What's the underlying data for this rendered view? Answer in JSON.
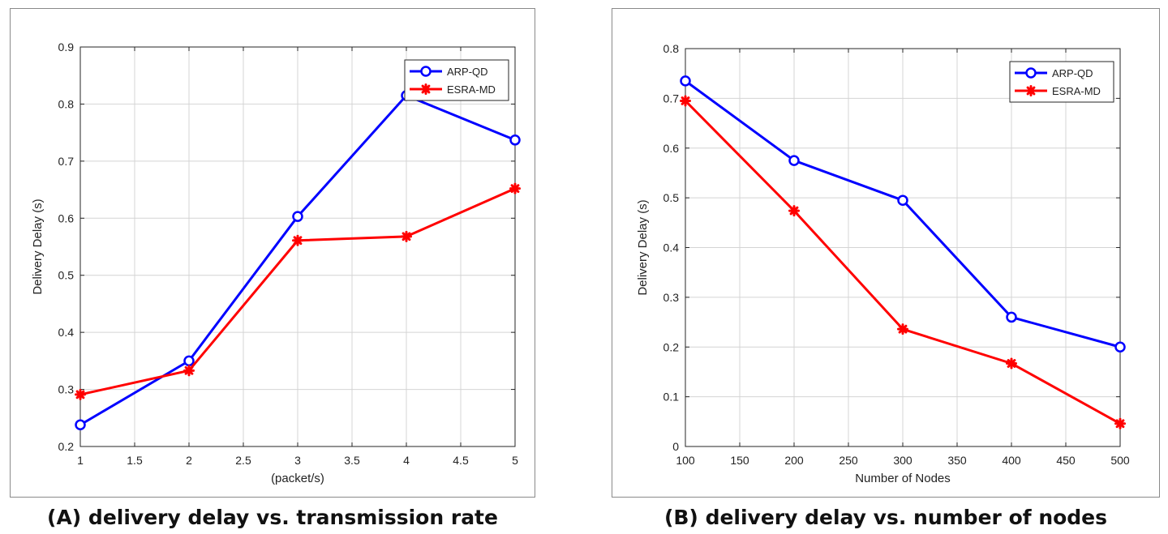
{
  "chart_data": [
    {
      "type": "line",
      "caption": "(A) delivery delay vs. transmission rate",
      "xlabel": "(packet/s)",
      "ylabel": "Delivery Delay (s)",
      "xlim": [
        1,
        5
      ],
      "ylim": [
        0.2,
        0.9
      ],
      "xticks": [
        1,
        1.5,
        2,
        2.5,
        3,
        3.5,
        4,
        4.5,
        5
      ],
      "yticks": [
        0.2,
        0.3,
        0.4,
        0.5,
        0.6,
        0.7,
        0.8,
        0.9
      ],
      "x": [
        1,
        2,
        3,
        4,
        5
      ],
      "grid": true,
      "legend_position": "top-right",
      "series": [
        {
          "name": "ARP-QD",
          "color": "#0000ff",
          "marker": "circle",
          "values": [
            0.238,
            0.35,
            0.603,
            0.815,
            0.737
          ]
        },
        {
          "name": "ESRA-MD",
          "color": "#ff0000",
          "marker": "asterisk",
          "values": [
            0.291,
            0.333,
            0.561,
            0.568,
            0.652
          ]
        }
      ]
    },
    {
      "type": "line",
      "caption": "(B) delivery delay vs. number of nodes",
      "xlabel": "Number of Nodes",
      "ylabel": "Delivery Delay (s)",
      "xlim": [
        100,
        500
      ],
      "ylim": [
        0,
        0.8
      ],
      "xticks": [
        100,
        150,
        200,
        250,
        300,
        350,
        400,
        450,
        500
      ],
      "yticks": [
        0,
        0.1,
        0.2,
        0.3,
        0.4,
        0.5,
        0.6,
        0.7,
        0.8
      ],
      "x": [
        100,
        200,
        300,
        400,
        500
      ],
      "grid": true,
      "legend_position": "top-right",
      "series": [
        {
          "name": "ARP-QD",
          "color": "#0000ff",
          "marker": "circle",
          "values": [
            0.735,
            0.575,
            0.495,
            0.26,
            0.2
          ]
        },
        {
          "name": "ESRA-MD",
          "color": "#ff0000",
          "marker": "asterisk",
          "values": [
            0.695,
            0.474,
            0.236,
            0.167,
            0.046
          ]
        }
      ]
    }
  ]
}
